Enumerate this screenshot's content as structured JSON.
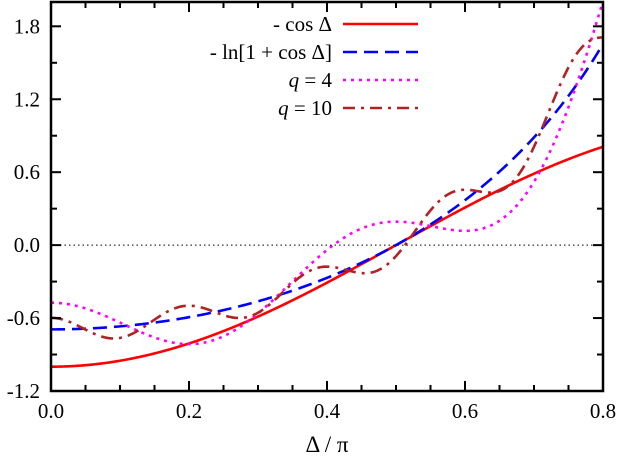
{
  "chart_data": {
    "type": "line",
    "xlabel": "Δ / π",
    "ylabel": "",
    "xlim": [
      0.0,
      0.8
    ],
    "ylim": [
      -1.2,
      2.0
    ],
    "xticks": [
      "0.0",
      "0.2",
      "0.4",
      "0.6",
      "0.8"
    ],
    "yticks": [
      "-1.2",
      "-0.6",
      "0.0",
      "0.6",
      "1.2",
      "1.8"
    ],
    "grid": false,
    "zero_line": true,
    "legend_position": "top-center",
    "series": [
      {
        "name": "- cos Δ",
        "function": "-cos(Δ)",
        "color": "#ff0000",
        "style": "solid"
      },
      {
        "name": "- ln[1 + cos Δ]",
        "function": "-ln(1+cos(Δ))",
        "color": "#0000ff",
        "style": "dashed"
      },
      {
        "name": "q = 4",
        "name_parts": [
          "q",
          " = 4"
        ],
        "function": "Fourier partial sum of -ln(1+cos Δ)",
        "q": 4,
        "color": "#ff00ff",
        "style": "dotted"
      },
      {
        "name": "q = 10",
        "name_parts": [
          "q",
          " = 10"
        ],
        "function": "Fourier partial sum of -ln(1+cos Δ)",
        "q": 10,
        "color": "#b22222",
        "style": "dash-dot"
      }
    ]
  }
}
